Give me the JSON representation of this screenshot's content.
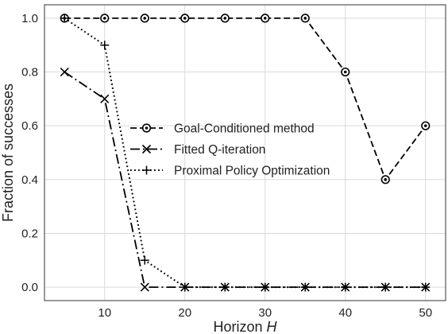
{
  "chart_data": {
    "type": "line",
    "title": "",
    "xlabel_prefix": "Horizon ",
    "xlabel_var": "H",
    "ylabel": "Fraction of successes",
    "xlim": [
      2.5,
      52.5
    ],
    "ylim": [
      -0.05,
      1.05
    ],
    "xticks": [
      10,
      20,
      30,
      40,
      50
    ],
    "yticks": [
      0.0,
      0.2,
      0.4,
      0.6,
      0.8,
      1.0
    ],
    "xtick_labels": [
      "10",
      "20",
      "30",
      "40",
      "50"
    ],
    "ytick_labels": [
      "0.0",
      "0.2",
      "0.4",
      "0.6",
      "0.8",
      "1.0"
    ],
    "grid": true,
    "legend_position": "center",
    "x": [
      5,
      10,
      15,
      20,
      25,
      30,
      35,
      40,
      45,
      50
    ],
    "series": [
      {
        "name": "Goal-Conditioned method",
        "values": [
          1.0,
          1.0,
          1.0,
          1.0,
          1.0,
          1.0,
          1.0,
          0.8,
          0.4,
          0.6
        ],
        "linestyle": "dashed",
        "marker": "circle-dot"
      },
      {
        "name": "Fitted Q-iteration",
        "values": [
          0.8,
          0.7,
          0.0,
          0.0,
          0.0,
          0.0,
          0.0,
          0.0,
          0.0,
          0.0
        ],
        "linestyle": "dashdot",
        "marker": "x"
      },
      {
        "name": "Proximal Policy Optimization",
        "values": [
          1.0,
          0.9,
          0.1,
          0.0,
          0.0,
          0.0,
          0.0,
          0.0,
          0.0,
          0.0
        ],
        "linestyle": "dotted",
        "marker": "plus"
      }
    ],
    "line_color": "#000000",
    "grid_color": "#d9d9d9"
  }
}
